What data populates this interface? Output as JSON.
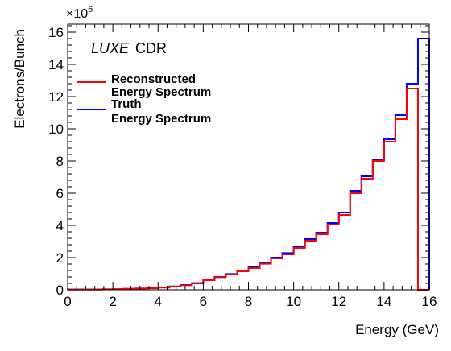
{
  "chart_data": {
    "type": "line",
    "style": "step-histogram",
    "xlabel": "Energy (GeV)",
    "ylabel": "Electrons/Bunch",
    "y_multiplier_label": "×10",
    "y_multiplier_exp": "6",
    "xlim": [
      0,
      16
    ],
    "ylim": [
      0,
      16.5
    ],
    "x_ticks": [
      "0",
      "2",
      "4",
      "6",
      "8",
      "10",
      "12",
      "14",
      "16"
    ],
    "y_ticks": [
      "0",
      "2",
      "4",
      "6",
      "8",
      "10",
      "12",
      "14",
      "16"
    ],
    "annotation": {
      "italic": "LUXE",
      "plain": "CDR"
    },
    "bin_edges": [
      0,
      0.5,
      1,
      1.5,
      2,
      2.5,
      3,
      3.5,
      4,
      4.5,
      5,
      5.5,
      6,
      6.5,
      7,
      7.5,
      8,
      8.5,
      9,
      9.5,
      10,
      10.5,
      11,
      11.5,
      12,
      12.5,
      13,
      13.5,
      14,
      14.5,
      15,
      15.5,
      16
    ],
    "series": [
      {
        "name": "Reconstructed Energy Spectrum",
        "name_lines": [
          "Reconstructed",
          "Energy Spectrum"
        ],
        "color": "#ff0000",
        "values": [
          0.02,
          0.02,
          0.02,
          0.03,
          0.04,
          0.06,
          0.08,
          0.1,
          0.14,
          0.2,
          0.28,
          0.4,
          0.6,
          0.78,
          0.95,
          1.15,
          1.35,
          1.62,
          1.95,
          2.2,
          2.6,
          3.05,
          3.45,
          4.05,
          4.65,
          6.0,
          6.9,
          8.0,
          9.2,
          10.6,
          12.5,
          0
        ]
      },
      {
        "name": "Truth Energy Spectrum",
        "name_lines": [
          "Truth",
          "Energy Spectrum"
        ],
        "color": "#0000ff",
        "values": [
          0.02,
          0.02,
          0.02,
          0.03,
          0.04,
          0.06,
          0.08,
          0.1,
          0.15,
          0.21,
          0.3,
          0.42,
          0.62,
          0.8,
          0.98,
          1.18,
          1.4,
          1.68,
          2.0,
          2.28,
          2.7,
          3.15,
          3.55,
          4.15,
          4.8,
          6.15,
          7.05,
          8.1,
          9.35,
          10.85,
          12.8,
          15.6
        ]
      }
    ],
    "grid": false,
    "legend": "top-left"
  }
}
